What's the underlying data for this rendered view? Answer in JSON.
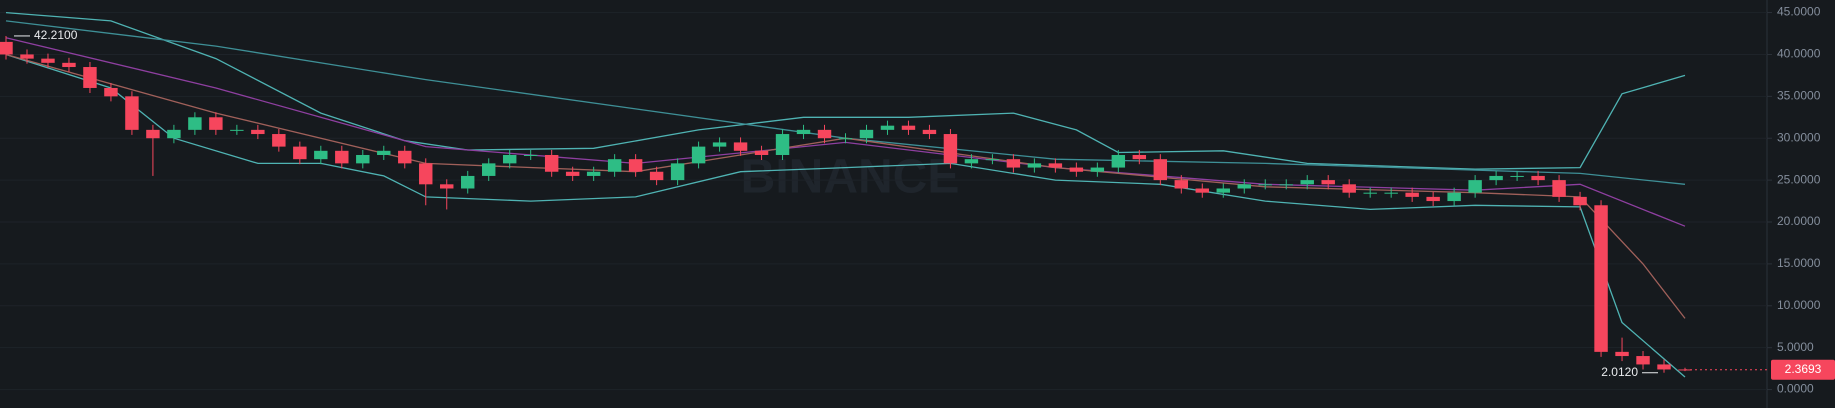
{
  "chart_data": {
    "type": "candlestick",
    "watermark": "BINANCE",
    "open": [
      41.5,
      40,
      39.5,
      39,
      38.5,
      36,
      35,
      31,
      30,
      31,
      32.5,
      31,
      31,
      30.5,
      29,
      27.5,
      28.5,
      27,
      28,
      28.5,
      27,
      24.5,
      24,
      25.5,
      27,
      28,
      28,
      26,
      25.5,
      26,
      27.5,
      26,
      25,
      27,
      29,
      29.5,
      28.5,
      28,
      30.5,
      31,
      30,
      30,
      31,
      31.5,
      31,
      30.5,
      27,
      27.5,
      27.5,
      26.5,
      27,
      26.5,
      26,
      26.5,
      28,
      27.5,
      25,
      24,
      23.5,
      24,
      24.5,
      24.5,
      24.5,
      25,
      24.5,
      23.5,
      23.5,
      23.5,
      23,
      22.5,
      23.5,
      25,
      25.5,
      25.5,
      25,
      23,
      22,
      4.5,
      4,
      3,
      2.4
    ],
    "high": [
      42.21,
      40.6,
      40.1,
      39.6,
      39.1,
      36.6,
      35.6,
      31.6,
      31.6,
      33.1,
      33.1,
      31.6,
      31.6,
      31.1,
      29.6,
      29.1,
      29.1,
      28.6,
      29.1,
      29.1,
      27.6,
      25.1,
      26.1,
      27.6,
      28.6,
      28.6,
      28.6,
      26.6,
      26.6,
      28.1,
      28.1,
      26.6,
      27.6,
      29.6,
      30.1,
      30.1,
      29.1,
      31.1,
      31.6,
      31.6,
      30.6,
      31.6,
      32.1,
      32.1,
      31.6,
      31.1,
      28.1,
      28.1,
      28.1,
      27.6,
      27.6,
      27.1,
      27.1,
      28.6,
      28.6,
      28.1,
      25.6,
      24.6,
      24.6,
      25.1,
      25.1,
      25.1,
      25.6,
      25.6,
      25.1,
      24.1,
      24.1,
      24.1,
      23.6,
      24.1,
      25.6,
      26.1,
      26.1,
      26.1,
      25.6,
      23.6,
      22.6,
      6.2,
      4.6,
      3.6,
      2.6
    ],
    "low": [
      39.4,
      38.9,
      38.4,
      37.9,
      35.4,
      34.4,
      30.4,
      25.5,
      29.4,
      30.4,
      30.4,
      30.4,
      29.9,
      28.4,
      26.9,
      26.9,
      26.4,
      26.4,
      27.4,
      26.4,
      22,
      21.5,
      23.4,
      24.9,
      26.4,
      27.4,
      25.4,
      24.9,
      24.9,
      25.4,
      25.4,
      24.4,
      24.4,
      26.4,
      28.4,
      27.9,
      27.4,
      27.4,
      29.9,
      29.4,
      29.4,
      29.4,
      30.4,
      30.4,
      29.9,
      26.4,
      26.4,
      26.9,
      25.9,
      25.9,
      25.9,
      25.4,
      25.4,
      25.9,
      26.9,
      24.4,
      23.4,
      22.9,
      22.9,
      23.4,
      23.9,
      23.9,
      23.9,
      23.9,
      22.9,
      22.9,
      22.9,
      22.4,
      21.9,
      21.9,
      22.9,
      24.4,
      24.9,
      24.4,
      22.4,
      21.4,
      3.9,
      3.4,
      2.4,
      2.012,
      2.2
    ],
    "close": [
      40,
      39.5,
      39,
      38.5,
      36,
      35,
      31,
      30,
      31,
      32.5,
      31,
      31,
      30.5,
      29,
      27.5,
      28.5,
      27,
      28,
      28.5,
      27,
      24.5,
      24,
      25.5,
      27,
      28,
      28,
      26,
      25.5,
      26,
      27.5,
      26,
      25,
      27,
      29,
      29.5,
      28.5,
      28,
      30.5,
      31,
      30,
      30,
      31,
      31.5,
      31,
      30.5,
      27,
      27.5,
      27.5,
      26.5,
      27,
      26.5,
      26,
      26.5,
      28,
      27.5,
      25,
      24,
      23.5,
      24,
      24.5,
      24.5,
      24.5,
      25,
      24.5,
      23.5,
      23.5,
      23.5,
      23,
      22.5,
      23.5,
      25,
      25.5,
      25.5,
      25,
      23,
      22,
      4.5,
      4,
      3,
      2.4,
      2.3693
    ],
    "up_color": "#2ebd85",
    "down_color": "#f6465d",
    "overlays": [
      {
        "color": "#4fb3b3",
        "x": [
          0,
          5,
          10,
          15,
          19,
          22,
          28,
          33,
          38,
          43,
          48,
          51,
          53,
          58,
          62,
          70,
          75,
          77,
          80
        ],
        "values": [
          45,
          44,
          39.5,
          33,
          29.7,
          28.6,
          28.8,
          31,
          32.5,
          32.5,
          33,
          31,
          28.3,
          28.5,
          27,
          26.3,
          26.5,
          35.3,
          37.5
        ]
      },
      {
        "color": "#4fb3b3",
        "x": [
          0,
          5,
          8,
          12,
          15,
          18,
          20,
          25,
          30,
          35,
          40,
          45,
          50,
          55,
          60,
          65,
          70,
          75,
          77,
          80
        ],
        "values": [
          40,
          36,
          30,
          27,
          27,
          25.5,
          23,
          22.5,
          23,
          26,
          26.5,
          27,
          25,
          24.5,
          22.5,
          21.5,
          22,
          21.8,
          8,
          1.5
        ]
      },
      {
        "color": "#3e8f96",
        "x": [
          0,
          10,
          20,
          30,
          40,
          50,
          60,
          70,
          75,
          80
        ],
        "values": [
          44,
          41,
          37,
          33.5,
          30,
          27.5,
          27,
          26.2,
          25.8,
          24.5
        ]
      },
      {
        "color": "#8e3fa0",
        "x": [
          0,
          10,
          20,
          30,
          40,
          50,
          60,
          70,
          75,
          80
        ],
        "values": [
          42,
          36,
          29,
          27,
          29.5,
          26.5,
          24.5,
          23.8,
          24.5,
          19.5
        ]
      },
      {
        "color": "#a0605a",
        "x": [
          0,
          10,
          20,
          30,
          40,
          50,
          60,
          70,
          75,
          78,
          80
        ],
        "values": [
          40,
          33,
          27,
          26,
          30,
          26.5,
          24.2,
          23.5,
          23,
          15,
          8.5
        ]
      }
    ],
    "ylim": [
      -2.2,
      46.5
    ],
    "yticks": [
      {
        "value": 0,
        "label": "0.0000"
      },
      {
        "value": 5,
        "label": "5.0000"
      },
      {
        "value": 10,
        "label": "10.0000"
      },
      {
        "value": 15,
        "label": "15.0000"
      },
      {
        "value": 20,
        "label": "20.0000"
      },
      {
        "value": 25,
        "label": "25.0000"
      },
      {
        "value": 30,
        "label": "30.0000"
      },
      {
        "value": 35,
        "label": "35.0000"
      },
      {
        "value": 40,
        "label": "40.0000"
      },
      {
        "value": 45,
        "label": "45.0000"
      }
    ],
    "grid": true,
    "high_marker": {
      "value": 42.21,
      "label": "42.2100"
    },
    "low_marker": {
      "value": 2.012,
      "label": "2.0120"
    },
    "last_price": {
      "value": 2.3693,
      "label": "2.3693"
    }
  }
}
